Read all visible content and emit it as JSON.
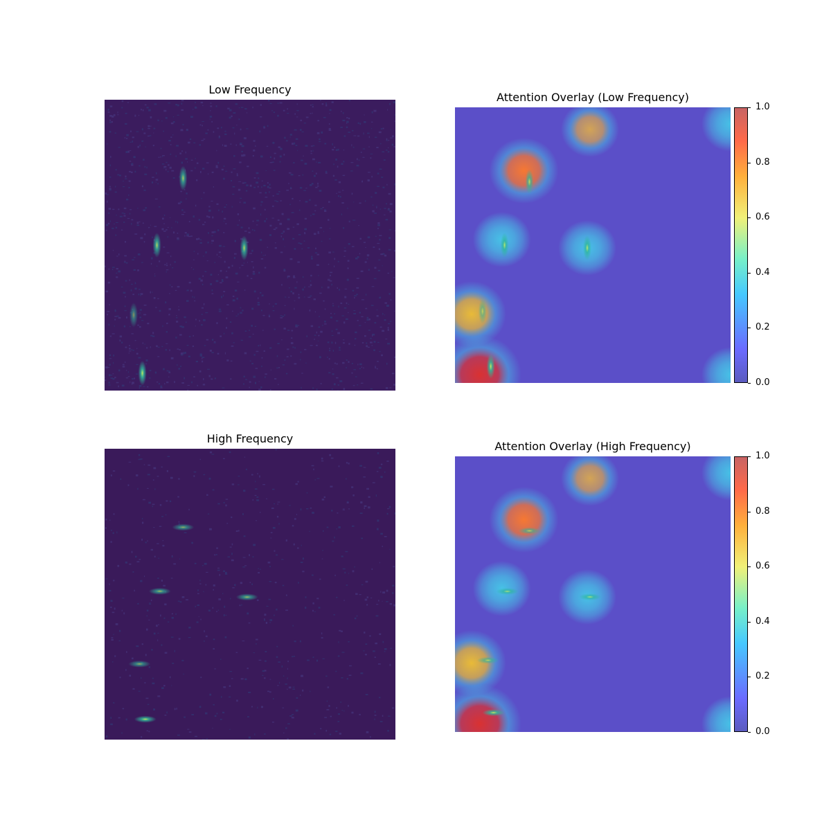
{
  "panels": {
    "low": {
      "title": "Low Frequency"
    },
    "overlay_low": {
      "title": "Attention Overlay (Low Frequency)"
    },
    "high": {
      "title": "High Frequency"
    },
    "overlay_high": {
      "title": "Attention Overlay (High Frequency)"
    }
  },
  "colorbar": {
    "ticks": [
      "0.0",
      "0.2",
      "0.4",
      "0.6",
      "0.8",
      "1.0"
    ],
    "colormap": "jet",
    "alpha": "0.6"
  },
  "colors": {
    "viridis_bg": "#3b1c5e",
    "overlay_bg": "#5b4fc8",
    "hot": "#d63a2a"
  },
  "chart_data": [
    {
      "type": "heatmap",
      "title": "Low Frequency",
      "colormap": "viridis",
      "bright_spots": [
        {
          "x": 0.27,
          "y": 0.27,
          "orientation": "vertical",
          "intensity": 0.7
        },
        {
          "x": 0.18,
          "y": 0.5,
          "orientation": "vertical",
          "intensity": 0.8
        },
        {
          "x": 0.48,
          "y": 0.51,
          "orientation": "vertical",
          "intensity": 0.8
        },
        {
          "x": 0.1,
          "y": 0.74,
          "orientation": "vertical",
          "intensity": 0.3
        },
        {
          "x": 0.13,
          "y": 0.94,
          "orientation": "vertical",
          "intensity": 0.95
        }
      ]
    },
    {
      "type": "heatmap",
      "title": "Attention Overlay (Low Frequency)",
      "colormap": "jet",
      "vmin": 0.0,
      "vmax": 1.0,
      "attention_blobs": [
        {
          "x": 0.25,
          "y": 0.23,
          "value": 0.8
        },
        {
          "x": 0.49,
          "y": 0.08,
          "value": 0.5
        },
        {
          "x": 0.17,
          "y": 0.48,
          "value": 0.3
        },
        {
          "x": 0.48,
          "y": 0.51,
          "value": 0.3
        },
        {
          "x": 0.06,
          "y": 0.75,
          "value": 0.7
        },
        {
          "x": 0.09,
          "y": 0.97,
          "value": 1.0
        },
        {
          "x": 1.0,
          "y": 0.06,
          "value": 0.3
        },
        {
          "x": 1.0,
          "y": 0.97,
          "value": 0.3
        }
      ]
    },
    {
      "type": "heatmap",
      "title": "High Frequency",
      "colormap": "viridis",
      "bright_spots": [
        {
          "x": 0.27,
          "y": 0.27,
          "orientation": "horizontal",
          "intensity": 0.5
        },
        {
          "x": 0.19,
          "y": 0.49,
          "orientation": "horizontal",
          "intensity": 0.6
        },
        {
          "x": 0.49,
          "y": 0.51,
          "orientation": "horizontal",
          "intensity": 0.6
        },
        {
          "x": 0.12,
          "y": 0.74,
          "orientation": "horizontal",
          "intensity": 0.5
        },
        {
          "x": 0.14,
          "y": 0.93,
          "orientation": "horizontal",
          "intensity": 0.9
        }
      ]
    },
    {
      "type": "heatmap",
      "title": "Attention Overlay (High Frequency)",
      "colormap": "jet",
      "vmin": 0.0,
      "vmax": 1.0,
      "attention_blobs": [
        {
          "x": 0.25,
          "y": 0.23,
          "value": 0.8
        },
        {
          "x": 0.49,
          "y": 0.08,
          "value": 0.5
        },
        {
          "x": 0.17,
          "y": 0.48,
          "value": 0.3
        },
        {
          "x": 0.48,
          "y": 0.51,
          "value": 0.3
        },
        {
          "x": 0.06,
          "y": 0.75,
          "value": 0.7
        },
        {
          "x": 0.09,
          "y": 0.97,
          "value": 1.0
        },
        {
          "x": 1.0,
          "y": 0.06,
          "value": 0.3
        },
        {
          "x": 1.0,
          "y": 0.97,
          "value": 0.3
        }
      ]
    }
  ]
}
